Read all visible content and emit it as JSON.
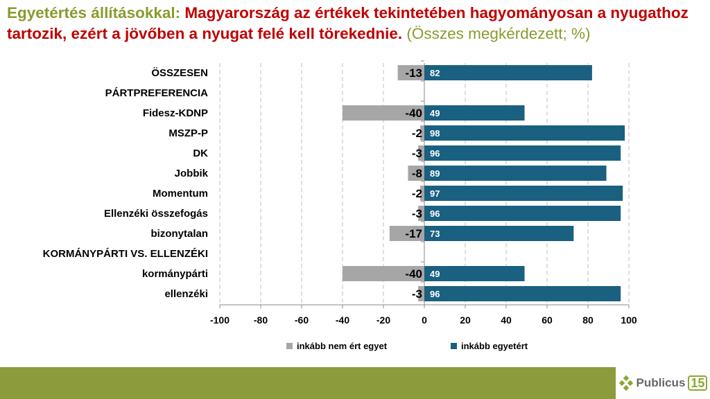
{
  "title": {
    "part1": "Egyetértés állításokkal: ",
    "part2": "Magyarország az értékek tekintetében hagyományosan a nyugathoz tartozik, ezért a jövőben a nyugat felé kell törekednie. ",
    "part3": "(Összes megkérdezett; %)"
  },
  "chart_data": {
    "type": "bar",
    "orientation": "horizontal",
    "stacked": "diverging",
    "categories": [
      "ÖSSZESEN",
      "PÁRTPREFERENCIA",
      "Fidesz-KDNP",
      "MSZP-P",
      "DK",
      "Jobbik",
      "Momentum",
      "Ellenzéki összefogás",
      "bizonytalan",
      "KORMÁNYPÁRTI VS. ELLENZÉKI",
      "kormánypárti",
      "ellenzéki"
    ],
    "series": [
      {
        "name": "inkább nem ért egyet",
        "color": "#a6a6a6",
        "values": [
          -13,
          null,
          -40,
          -2,
          -3,
          -8,
          -2,
          -3,
          -17,
          null,
          -40,
          -3
        ]
      },
      {
        "name": "inkább egyetért",
        "color": "#1a6080",
        "values": [
          82,
          null,
          49,
          98,
          96,
          89,
          97,
          96,
          73,
          null,
          49,
          96
        ]
      }
    ],
    "xlim": [
      -100,
      100
    ],
    "xticks": [
      "-100",
      "-80",
      "-60",
      "-40",
      "-20",
      "0",
      "20",
      "40",
      "60",
      "80",
      "100"
    ],
    "grid": true,
    "legend": "bottom"
  },
  "logo": {
    "name": "Publicus",
    "num": "15"
  }
}
